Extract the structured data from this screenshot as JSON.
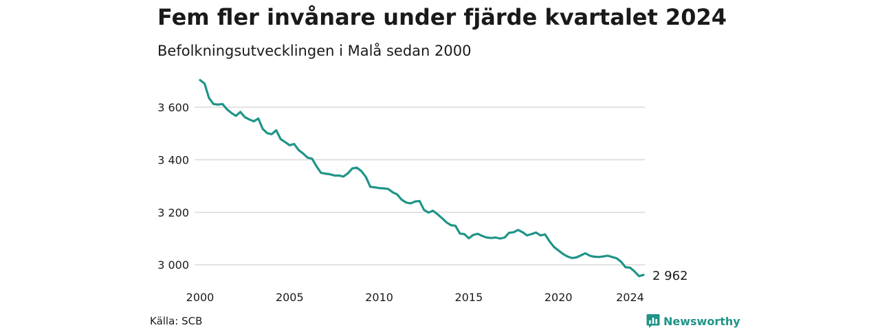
{
  "title": "Fem fler invånare under fjärde kvartalet 2024",
  "subtitle": "Befolkningsutvecklingen i Malå sedan 2000",
  "source": "Källa: SCB",
  "brand": "Newsworthy",
  "end_label": "2 962",
  "colors": {
    "line": "#1f9487",
    "grid": "#d9d9d9",
    "brand": "#1f9487"
  },
  "icons": {
    "brand_logo": "bar-chart-speech-bubble-icon"
  },
  "chart_data": {
    "type": "line",
    "title": "Fem fler invånare under fjärde kvartalet 2024",
    "subtitle": "Befolkningsutvecklingen i Malå sedan 2000",
    "xlabel": "",
    "ylabel": "",
    "xlim": [
      2000,
      2024.75
    ],
    "ylim": [
      2930,
      3720
    ],
    "grid": true,
    "legend": "none",
    "yticks": [
      3000,
      3200,
      3400,
      3600
    ],
    "ytick_labels": [
      "3 000",
      "3 200",
      "3 400",
      "3 600"
    ],
    "xticks": [
      2000,
      2005,
      2010,
      2015,
      2020,
      2024
    ],
    "xtick_labels": [
      "2000",
      "2005",
      "2010",
      "2015",
      "2020",
      "2024"
    ],
    "series": [
      {
        "x": [
          2000.0,
          2000.25,
          2000.5,
          2000.75,
          2001.0,
          2001.25,
          2001.5,
          2001.75,
          2002.0,
          2002.25,
          2002.5,
          2002.75,
          2003.0,
          2003.25,
          2003.5,
          2003.75,
          2004.0,
          2004.25,
          2004.5,
          2004.75,
          2005.0,
          2005.25,
          2005.5,
          2005.75,
          2006.0,
          2006.25,
          2006.5,
          2006.75,
          2007.0,
          2007.25,
          2007.5,
          2007.75,
          2008.0,
          2008.25,
          2008.5,
          2008.75,
          2009.0,
          2009.25,
          2009.5,
          2009.75,
          2010.0,
          2010.25,
          2010.5,
          2010.75,
          2011.0,
          2011.25,
          2011.5,
          2011.75,
          2012.0,
          2012.25,
          2012.5,
          2012.75,
          2013.0,
          2013.25,
          2013.5,
          2013.75,
          2014.0,
          2014.25,
          2014.5,
          2014.75,
          2015.0,
          2015.25,
          2015.5,
          2015.75,
          2016.0,
          2016.25,
          2016.5,
          2016.75,
          2017.0,
          2017.25,
          2017.5,
          2017.75,
          2018.0,
          2018.25,
          2018.5,
          2018.75,
          2019.0,
          2019.25,
          2019.5,
          2019.75,
          2020.0,
          2020.25,
          2020.5,
          2020.75,
          2021.0,
          2021.25,
          2021.5,
          2021.75,
          2022.0,
          2022.25,
          2022.5,
          2022.75,
          2023.0,
          2023.25,
          2023.5,
          2023.75,
          2024.0,
          2024.25,
          2024.5,
          2024.75
        ],
        "values": [
          3703,
          3690,
          3635,
          3612,
          3610,
          3612,
          3592,
          3578,
          3567,
          3582,
          3562,
          3553,
          3546,
          3557,
          3517,
          3501,
          3497,
          3512,
          3478,
          3467,
          3455,
          3460,
          3437,
          3424,
          3408,
          3404,
          3375,
          3350,
          3347,
          3345,
          3340,
          3340,
          3336,
          3348,
          3367,
          3370,
          3357,
          3335,
          3297,
          3295,
          3292,
          3291,
          3289,
          3276,
          3268,
          3248,
          3237,
          3234,
          3241,
          3243,
          3209,
          3199,
          3206,
          3193,
          3178,
          3162,
          3151,
          3149,
          3119,
          3117,
          3101,
          3114,
          3118,
          3110,
          3104,
          3102,
          3104,
          3100,
          3104,
          3122,
          3124,
          3133,
          3124,
          3112,
          3117,
          3123,
          3112,
          3116,
          3090,
          3068,
          3055,
          3042,
          3032,
          3026,
          3028,
          3036,
          3044,
          3035,
          3031,
          3030,
          3032,
          3035,
          3030,
          3025,
          3012,
          2991,
          2989,
          2975,
          2957,
          2962
        ]
      }
    ]
  }
}
